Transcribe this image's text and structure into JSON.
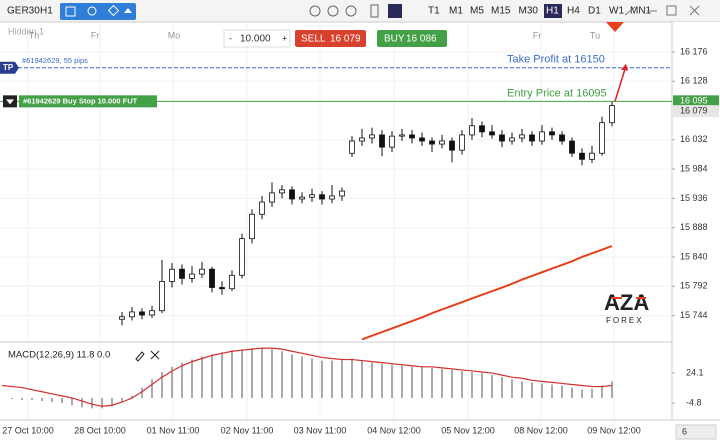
{
  "toolbar": {
    "symbol": "GER30",
    "timeframe": "H1",
    "timeframes": [
      "T1",
      "M1",
      "M5",
      "M15",
      "M30",
      "H1",
      "H4",
      "D1",
      "W1",
      "MN1"
    ],
    "active_timeframe": 5
  },
  "trade_panel": {
    "quantity": "10.000",
    "sell_label": "SELL",
    "sell_price": "16 079",
    "buy_label": "BUY",
    "buy_price": "16 086"
  },
  "brand": {
    "logo": "AZA",
    "sub": "FOREX"
  },
  "bottom_right": "6",
  "chart_data": {
    "type": "candlestick",
    "pane_label": "Hidden 1",
    "grid": true,
    "ylim": [
      15704,
      16225
    ],
    "yticks": [
      {
        "value": 16176,
        "label": "16 176"
      },
      {
        "value": 16128,
        "label": "16 128"
      },
      {
        "value": 16032,
        "label": "16 032"
      },
      {
        "value": 15984,
        "label": "15 984"
      },
      {
        "value": 15936,
        "label": "15 936"
      },
      {
        "value": 15888,
        "label": "15 888"
      },
      {
        "value": 15840,
        "label": "15 840"
      },
      {
        "value": 15792,
        "label": "15 792"
      },
      {
        "value": 15744,
        "label": "15 744"
      }
    ],
    "xlim": [
      -0.2,
      67
    ],
    "xticks": [
      {
        "value": 2.6,
        "label": "27 Oct 10:00"
      },
      {
        "value": 9.8,
        "label": "28 Oct 10:00"
      },
      {
        "value": 17.1,
        "label": "01 Nov 11:00"
      },
      {
        "value": 24.5,
        "label": "02 Nov 11:00"
      },
      {
        "value": 31.8,
        "label": "03 Nov 11:00"
      },
      {
        "value": 39.2,
        "label": "04 Nov 12:00"
      },
      {
        "value": 46.6,
        "label": "05 Nov 12:00"
      },
      {
        "value": 53.9,
        "label": "08 Nov 12:00"
      },
      {
        "value": 61.2,
        "label": "09 Nov 12:00"
      }
    ],
    "day_labels": [
      {
        "value": 3.2,
        "label": "Th"
      },
      {
        "value": 9.3,
        "label": "Fr"
      },
      {
        "value": 17.2,
        "label": "Mo"
      },
      {
        "value": 53.5,
        "label": "Fr"
      },
      {
        "value": 59.3,
        "label": "Tu"
      }
    ],
    "ohlc": [
      null,
      null,
      null,
      null,
      null,
      null,
      null,
      null,
      null,
      null,
      null,
      null,
      [
        15738,
        15750,
        15728,
        15742
      ],
      [
        15742,
        15758,
        15736,
        15750
      ],
      [
        15750,
        15756,
        15738,
        15745
      ],
      [
        15745,
        15760,
        15740,
        15752
      ],
      [
        15752,
        15835,
        15748,
        15800
      ],
      [
        15800,
        15830,
        15790,
        15820
      ],
      [
        15820,
        15828,
        15795,
        15805
      ],
      [
        15805,
        15825,
        15798,
        15812
      ],
      [
        15812,
        15832,
        15806,
        15820
      ],
      [
        15820,
        15824,
        15782,
        15790
      ],
      [
        15790,
        15800,
        15778,
        15788
      ],
      [
        15788,
        15818,
        15784,
        15810
      ],
      [
        15810,
        15878,
        15805,
        15870
      ],
      [
        15870,
        15918,
        15862,
        15910
      ],
      [
        15910,
        15940,
        15902,
        15930
      ],
      [
        15930,
        15962,
        15922,
        15945
      ],
      [
        15945,
        15958,
        15936,
        15950
      ],
      [
        15950,
        15956,
        15926,
        15935
      ],
      [
        15935,
        15946,
        15928,
        15938
      ],
      [
        15938,
        15952,
        15930,
        15942
      ],
      [
        15942,
        15948,
        15926,
        15935
      ],
      [
        15935,
        15958,
        15928,
        15940
      ],
      [
        15940,
        15954,
        15932,
        15948
      ],
      [
        16010,
        16038,
        16004,
        16030
      ],
      [
        16030,
        16050,
        16022,
        16035
      ],
      [
        16035,
        16052,
        16026,
        16040
      ],
      [
        16040,
        16048,
        16005,
        16020
      ],
      [
        16020,
        16046,
        16012,
        16038
      ],
      [
        16038,
        16050,
        16030,
        16040
      ],
      [
        16040,
        16048,
        16026,
        16035
      ],
      [
        16035,
        16044,
        16022,
        16030
      ],
      [
        16030,
        16036,
        16012,
        16025
      ],
      [
        16025,
        16040,
        16018,
        16030
      ],
      [
        16030,
        16036,
        15995,
        16015
      ],
      [
        16015,
        16048,
        16008,
        16040
      ],
      [
        16040,
        16068,
        16032,
        16055
      ],
      [
        16055,
        16062,
        16036,
        16045
      ],
      [
        16045,
        16056,
        16034,
        16040
      ],
      [
        16040,
        16048,
        16020,
        16030
      ],
      [
        16030,
        16044,
        16024,
        16035
      ],
      [
        16035,
        16050,
        16028,
        16040
      ],
      [
        16040,
        16046,
        16022,
        16030
      ],
      [
        16030,
        16056,
        16024,
        16045
      ],
      [
        16045,
        16052,
        16032,
        16040
      ],
      [
        16040,
        16046,
        16024,
        16030
      ],
      [
        16030,
        16036,
        16004,
        16010
      ],
      [
        16010,
        16018,
        15990,
        16000
      ],
      [
        16000,
        16022,
        15994,
        16010
      ],
      [
        16010,
        16070,
        16006,
        16060
      ],
      [
        16060,
        16095,
        16054,
        16088
      ]
    ],
    "ma": {
      "color": "#e8401c",
      "values": [
        null,
        null,
        null,
        null,
        null,
        null,
        null,
        null,
        null,
        null,
        null,
        null,
        null,
        null,
        null,
        null,
        null,
        null,
        null,
        null,
        null,
        null,
        null,
        null,
        null,
        null,
        null,
        null,
        null,
        null,
        null,
        null,
        null,
        null,
        null,
        null,
        15705,
        15711,
        15717,
        15723,
        15729,
        15735,
        15741,
        15748,
        15754,
        15760,
        15766,
        15772,
        15778,
        15784,
        15790,
        15796,
        15803,
        15809,
        15815,
        15821,
        15827,
        15833,
        15840,
        15846,
        15852,
        15858
      ]
    },
    "current_price": {
      "value": 16079,
      "label": "16 079"
    },
    "orders": [
      {
        "tag": "TP",
        "text": "#61942629, 55 pips",
        "value": 16150,
        "annotation": "Take Profit at 16150",
        "color": "#3b6cc7"
      },
      {
        "text": "#61942629 Buy Stop 10.000 FUT",
        "value": 16095,
        "value_label": "16 095",
        "annotation": "Entry Price at 16095",
        "color": "#43a047"
      }
    ],
    "macd": {
      "label": "MACD(12,26,9) 11.8 0.0",
      "ylim": [
        -16.4,
        51
      ],
      "yticks": [
        24.1,
        -4.8
      ],
      "histogram": [
        0,
        -1,
        -2,
        -2,
        -3,
        -4,
        -5,
        -7,
        -9,
        -10,
        -10,
        -8,
        -4,
        2,
        10,
        18,
        25,
        30,
        34,
        37,
        40,
        42,
        44,
        46,
        47,
        48,
        48,
        47,
        45,
        42,
        40,
        38,
        36,
        36,
        38,
        38,
        36,
        34,
        33,
        32,
        31,
        30,
        30,
        29,
        28,
        27,
        26,
        25,
        24,
        22,
        20,
        18,
        16,
        15,
        14,
        13,
        12,
        10,
        8,
        9,
        12,
        16
      ],
      "signal": {
        "color": "#d32f2f",
        "values": [
          12,
          11,
          10,
          8,
          6,
          4,
          2,
          0,
          -3,
          -6,
          -8,
          -7,
          -4,
          0,
          6,
          13,
          20,
          26,
          31,
          35,
          38,
          41,
          43,
          45,
          46,
          47,
          48,
          48,
          47,
          45,
          43,
          41,
          39,
          38,
          37,
          37,
          36,
          35,
          34,
          33,
          32,
          31,
          30,
          30,
          29,
          28,
          27,
          26,
          25,
          24,
          22,
          20,
          19,
          17,
          16,
          15,
          14,
          13,
          12,
          11,
          11,
          12
        ]
      }
    }
  }
}
